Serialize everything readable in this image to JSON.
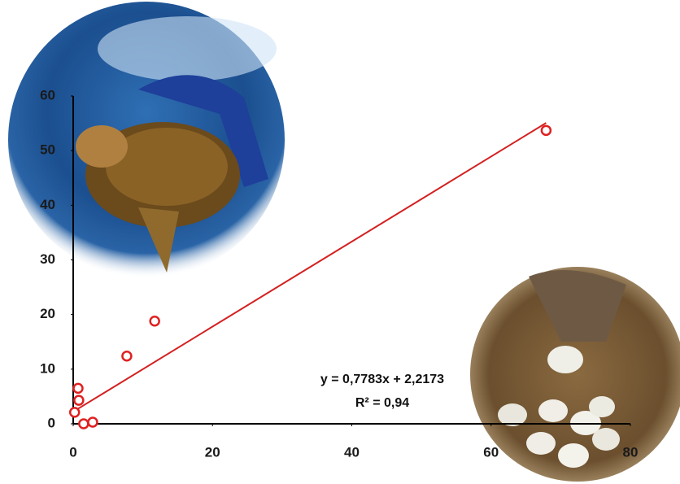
{
  "chart_data": {
    "type": "scatter",
    "series": [
      {
        "name": null,
        "color": "#e02020",
        "x": [
          0.2,
          0.7,
          0.8,
          1.5,
          2.8,
          7.7,
          11.7,
          67.9
        ],
        "values": [
          2.1,
          6.5,
          4.3,
          0,
          0.3,
          12.4,
          18.8,
          53.7
        ]
      }
    ],
    "trendline": {
      "slope": 0.7783,
      "intercept": 2.2173,
      "x_range": [
        0.2,
        67.9
      ],
      "color": "#d42020",
      "equation": "y = 0,7783x + 2,2173",
      "r2_label": "R² = 0,94"
    },
    "xlim": [
      0,
      80
    ],
    "ylim": [
      0,
      60
    ],
    "xticks": [
      0,
      20,
      40,
      60,
      80
    ],
    "yticks": [
      0,
      10,
      20,
      30,
      40,
      50,
      60
    ],
    "grid": false
  }
}
